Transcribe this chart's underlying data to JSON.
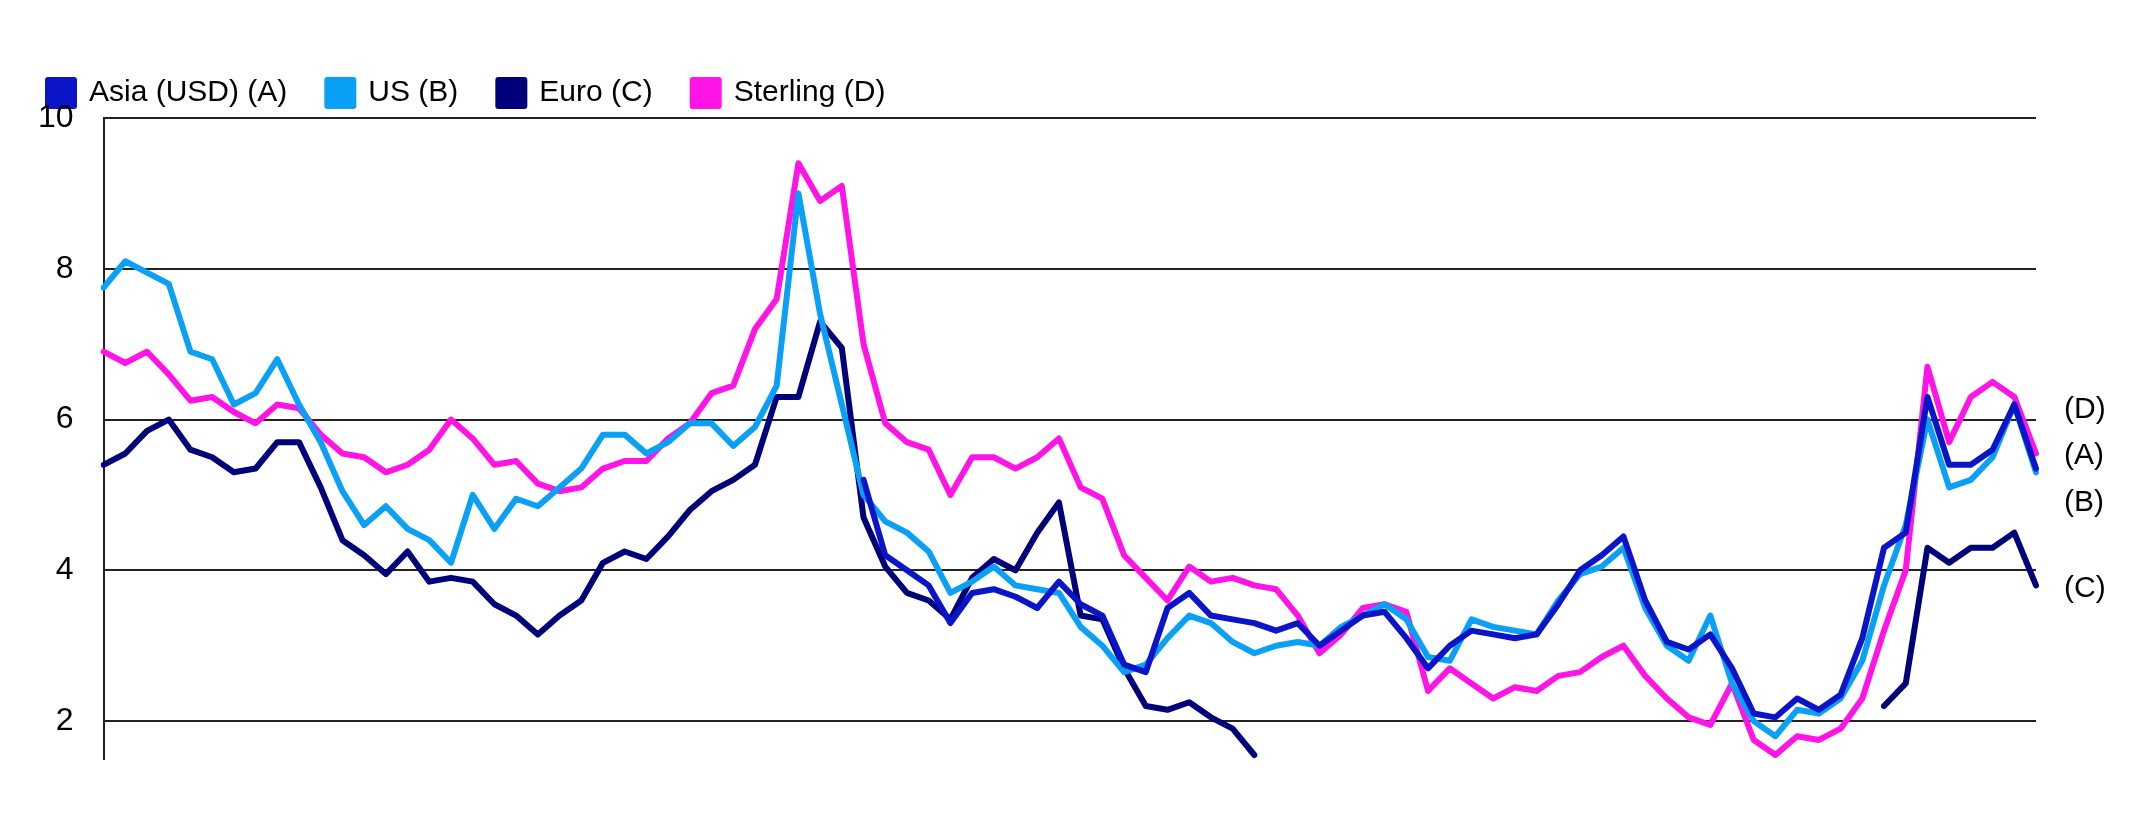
{
  "chart_data": {
    "type": "line",
    "categories": [
      null,
      null,
      null,
      null,
      null,
      null,
      null,
      null,
      null,
      null,
      null,
      null,
      null,
      null,
      null,
      null,
      null,
      null,
      null,
      null,
      null,
      null,
      null,
      null,
      null,
      null,
      null,
      null,
      null,
      null,
      null,
      null,
      null,
      null,
      null,
      null,
      null,
      null,
      null,
      null,
      null,
      null,
      null,
      null,
      null,
      null,
      null,
      null,
      null,
      null,
      null,
      null,
      null,
      null,
      null,
      null,
      null,
      null,
      null,
      null,
      null,
      null,
      null,
      null,
      null,
      null,
      null,
      null,
      null,
      null,
      null,
      null,
      null,
      null,
      null,
      null,
      null,
      null,
      null,
      null,
      null,
      null,
      null,
      null,
      null,
      null,
      null,
      null,
      null,
      null
    ],
    "series": [
      {
        "name": "Asia (USD) (A)",
        "color": "#0a14c8",
        "values": [
          null,
          null,
          null,
          null,
          null,
          null,
          null,
          null,
          null,
          null,
          null,
          null,
          null,
          null,
          null,
          null,
          null,
          null,
          null,
          null,
          null,
          null,
          null,
          null,
          null,
          null,
          null,
          null,
          null,
          null,
          null,
          null,
          null,
          null,
          null,
          5.2,
          4.2,
          4.0,
          3.8,
          3.3,
          3.7,
          3.75,
          3.65,
          3.5,
          3.85,
          3.55,
          3.4,
          2.75,
          2.65,
          3.5,
          3.7,
          3.4,
          3.35,
          3.3,
          3.2,
          3.3,
          3.0,
          3.2,
          3.4,
          3.45,
          3.1,
          2.7,
          3.0,
          3.2,
          3.15,
          3.1,
          3.15,
          3.55,
          4.0,
          4.2,
          4.45,
          3.6,
          3.05,
          2.95,
          3.15,
          2.7,
          2.1,
          2.05,
          2.3,
          2.15,
          2.35,
          3.1,
          4.3,
          4.5,
          6.3,
          5.4,
          5.4,
          5.6,
          6.2,
          5.35
        ]
      },
      {
        "name": "US (B)",
        "color": "#0aa0f5",
        "values": [
          7.75,
          8.1,
          7.95,
          7.8,
          6.9,
          6.8,
          6.2,
          6.35,
          6.8,
          6.2,
          5.7,
          5.05,
          4.6,
          4.85,
          4.55,
          4.4,
          4.1,
          5.0,
          4.55,
          4.95,
          4.85,
          5.1,
          5.35,
          5.8,
          5.8,
          5.55,
          5.7,
          5.95,
          5.95,
          5.65,
          5.9,
          6.45,
          9.0,
          7.4,
          6.2,
          5.0,
          4.65,
          4.5,
          4.25,
          3.7,
          3.85,
          4.05,
          3.8,
          3.75,
          3.7,
          3.25,
          3.0,
          2.65,
          2.75,
          3.1,
          3.4,
          3.3,
          3.05,
          2.9,
          3.0,
          3.05,
          3.0,
          3.25,
          3.4,
          3.55,
          3.35,
          2.85,
          2.8,
          3.35,
          3.25,
          3.2,
          3.15,
          3.6,
          3.95,
          4.05,
          4.3,
          3.5,
          3.0,
          2.8,
          3.4,
          2.5,
          2.0,
          1.8,
          2.15,
          2.1,
          2.3,
          2.8,
          3.8,
          4.6,
          6.0,
          5.1,
          5.2,
          5.5,
          6.2,
          5.3
        ]
      },
      {
        "name": "Euro (C)",
        "color": "#00007a",
        "values": [
          5.4,
          5.55,
          5.85,
          6.0,
          5.6,
          5.5,
          5.3,
          5.35,
          5.7,
          5.7,
          5.1,
          4.4,
          4.2,
          3.95,
          4.25,
          3.85,
          3.9,
          3.85,
          3.55,
          3.4,
          3.15,
          3.4,
          3.6,
          4.1,
          4.25,
          4.15,
          4.45,
          4.8,
          5.05,
          5.2,
          5.4,
          6.3,
          6.3,
          7.3,
          6.95,
          4.7,
          4.05,
          3.7,
          3.6,
          3.35,
          3.9,
          4.15,
          4.0,
          4.5,
          4.9,
          3.4,
          3.35,
          2.7,
          2.2,
          2.15,
          2.25,
          2.05,
          1.9,
          1.55,
          null,
          null,
          null,
          null,
          null,
          null,
          null,
          null,
          null,
          null,
          null,
          null,
          null,
          null,
          null,
          null,
          null,
          null,
          null,
          null,
          null,
          null,
          null,
          null,
          null,
          null,
          null,
          null,
          2.2,
          2.5,
          4.3,
          4.1,
          4.3,
          4.3,
          4.5,
          3.8
        ]
      },
      {
        "name": "Sterling (D)",
        "color": "#ff14e6",
        "values": [
          6.9,
          6.75,
          6.9,
          6.6,
          6.25,
          6.3,
          6.1,
          5.95,
          6.2,
          6.15,
          5.8,
          5.55,
          5.5,
          5.3,
          5.4,
          5.6,
          6.0,
          5.75,
          5.4,
          5.45,
          5.15,
          5.05,
          5.1,
          5.35,
          5.45,
          5.45,
          5.75,
          5.95,
          6.35,
          6.45,
          7.2,
          7.6,
          9.4,
          8.9,
          9.1,
          7.0,
          5.95,
          5.7,
          5.6,
          5.0,
          5.5,
          5.5,
          5.35,
          5.5,
          5.75,
          5.1,
          4.95,
          4.2,
          3.9,
          3.6,
          4.05,
          3.85,
          3.9,
          3.8,
          3.75,
          3.4,
          2.9,
          3.15,
          3.5,
          3.55,
          3.45,
          2.4,
          2.7,
          2.5,
          2.3,
          2.45,
          2.4,
          2.6,
          2.65,
          2.85,
          3.0,
          2.6,
          2.3,
          2.05,
          1.95,
          2.5,
          1.75,
          1.55,
          1.8,
          1.75,
          1.9,
          2.3,
          3.2,
          4.0,
          6.7,
          5.7,
          6.3,
          6.5,
          6.3,
          5.55
        ]
      }
    ],
    "ylim": [
      1.5,
      10
    ],
    "yticks": [
      2,
      4,
      6,
      8,
      10
    ],
    "grid": "y",
    "legend": "top",
    "marker": "none",
    "line_style": "solid",
    "annotations": [
      "(D)",
      "(A)",
      "(B)",
      "(C)"
    ]
  }
}
